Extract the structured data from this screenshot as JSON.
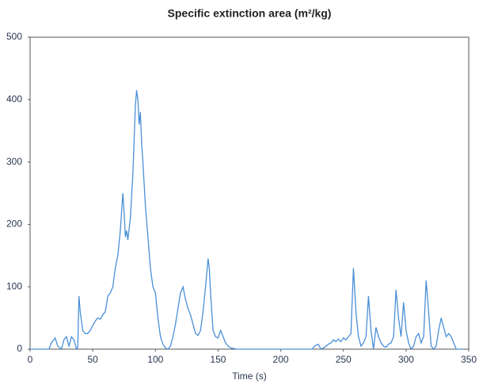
{
  "chart_data": {
    "type": "line",
    "title": "Specific extinction area (m²/kg)",
    "xlabel": "Time (s)",
    "color": "#4a8fd6",
    "x": [
      0,
      15,
      17,
      20,
      22,
      25,
      27,
      29,
      31,
      33,
      35,
      37,
      38,
      39,
      40,
      42,
      44,
      46,
      48,
      50,
      52,
      54,
      56,
      58,
      60,
      62,
      64,
      66,
      68,
      70,
      72,
      74,
      75,
      76,
      77,
      78,
      80,
      82,
      84,
      85,
      86,
      87,
      88,
      89,
      90,
      92,
      94,
      96,
      98,
      100,
      102,
      104,
      106,
      108,
      110,
      112,
      114,
      116,
      118,
      120,
      122,
      124,
      126,
      128,
      130,
      132,
      134,
      136,
      138,
      140,
      142,
      143,
      144,
      146,
      148,
      150,
      152,
      154,
      156,
      158,
      160,
      165,
      180,
      200,
      225,
      227,
      230,
      232,
      235,
      238,
      240,
      242,
      244,
      246,
      248,
      250,
      252,
      254,
      256,
      258,
      260,
      262,
      264,
      266,
      268,
      270,
      272,
      274,
      276,
      278,
      280,
      282,
      284,
      286,
      288,
      290,
      292,
      294,
      296,
      298,
      300,
      302,
      304,
      306,
      308,
      310,
      312,
      314,
      316,
      318,
      320,
      322,
      324,
      326,
      328,
      330,
      332,
      334,
      336,
      338,
      340,
      345
    ],
    "values": [
      0,
      0,
      10,
      18,
      5,
      0,
      15,
      20,
      5,
      20,
      15,
      0,
      2,
      85,
      60,
      30,
      25,
      25,
      30,
      38,
      45,
      50,
      48,
      55,
      60,
      85,
      90,
      100,
      130,
      150,
      190,
      250,
      220,
      180,
      190,
      175,
      210,
      280,
      390,
      415,
      400,
      360,
      380,
      330,
      300,
      230,
      180,
      130,
      100,
      90,
      50,
      20,
      8,
      2,
      0,
      5,
      20,
      40,
      65,
      90,
      100,
      80,
      65,
      55,
      40,
      25,
      22,
      30,
      60,
      100,
      145,
      130,
      90,
      30,
      20,
      18,
      30,
      20,
      10,
      5,
      2,
      0,
      0,
      0,
      0,
      5,
      8,
      0,
      3,
      8,
      10,
      15,
      12,
      16,
      12,
      18,
      15,
      20,
      25,
      130,
      60,
      20,
      5,
      10,
      20,
      85,
      30,
      0,
      35,
      20,
      10,
      5,
      3,
      8,
      10,
      20,
      95,
      50,
      20,
      75,
      30,
      10,
      0,
      5,
      20,
      25,
      10,
      20,
      110,
      60,
      5,
      0,
      5,
      30,
      50,
      35,
      20,
      25,
      20,
      10,
      0,
      0
    ],
    "xlim": [
      0,
      350
    ],
    "xticks": [
      0,
      50,
      100,
      150,
      200,
      250,
      300,
      350
    ],
    "ylim": [
      0,
      500
    ],
    "yticks": [
      0,
      100,
      200,
      300,
      400,
      500
    ]
  }
}
